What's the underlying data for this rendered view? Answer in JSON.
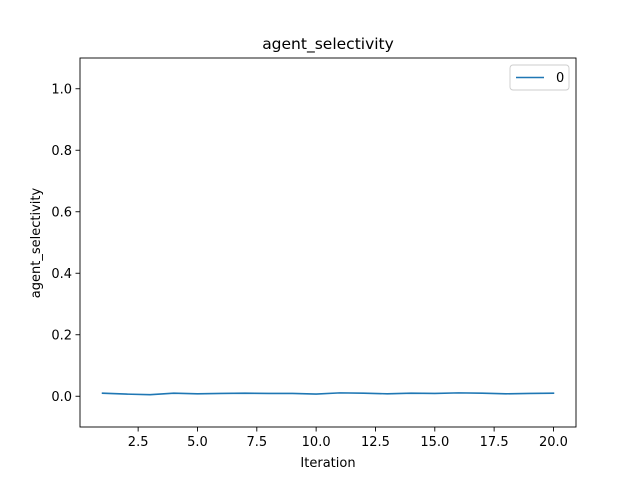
{
  "chart_data": {
    "type": "line",
    "title": "agent_selectivity",
    "xlabel": "Iteration",
    "ylabel": "agent_selectivity",
    "xlim": [
      0.05,
      20.95
    ],
    "ylim": [
      -0.1,
      1.1
    ],
    "xticks": [
      "2.5",
      "5.0",
      "7.5",
      "10.0",
      "12.5",
      "15.0",
      "17.5",
      "20.0"
    ],
    "xtick_values": [
      2.5,
      5.0,
      7.5,
      10.0,
      12.5,
      15.0,
      17.5,
      20.0
    ],
    "yticks": [
      "0.0",
      "0.2",
      "0.4",
      "0.6",
      "0.8",
      "1.0"
    ],
    "ytick_values": [
      0.0,
      0.2,
      0.4,
      0.6,
      0.8,
      1.0
    ],
    "grid": false,
    "legend_position": "top-right",
    "x": [
      1,
      2,
      3,
      4,
      5,
      6,
      7,
      8,
      9,
      10,
      11,
      12,
      13,
      14,
      15,
      16,
      17,
      18,
      19,
      20
    ],
    "series": [
      {
        "name": "0",
        "color": "#1f77b4",
        "values": [
          0.01,
          0.007,
          0.005,
          0.01,
          0.008,
          0.009,
          0.01,
          0.009,
          0.009,
          0.007,
          0.011,
          0.01,
          0.008,
          0.01,
          0.009,
          0.011,
          0.01,
          0.008,
          0.009,
          0.01
        ]
      }
    ]
  }
}
